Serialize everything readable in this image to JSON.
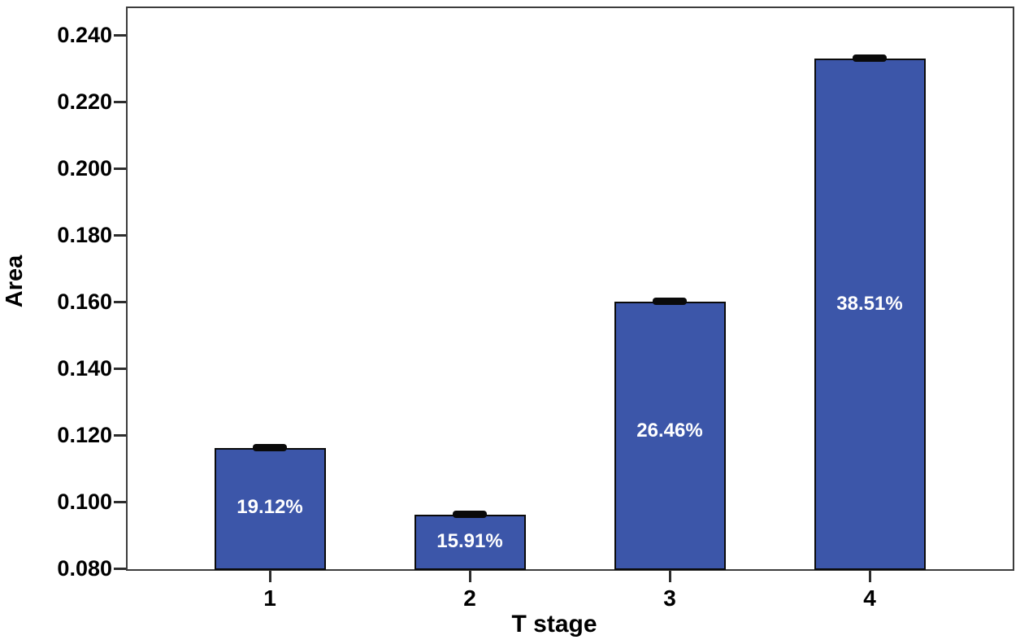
{
  "chart_data": {
    "type": "bar",
    "title": "",
    "xlabel": "T stage",
    "ylabel": "Area",
    "categories": [
      "1",
      "2",
      "3",
      "4"
    ],
    "values": [
      0.116,
      0.096,
      0.16,
      0.233
    ],
    "bar_labels": [
      "19.12%",
      "15.91%",
      "26.46%",
      "38.51%"
    ],
    "errors": [
      0.001,
      0.001,
      0.001,
      0.001
    ],
    "ylim": [
      0.08,
      0.24
    ],
    "ytick_step": 0.02,
    "yticks": [
      "0.080",
      "0.100",
      "0.120",
      "0.140",
      "0.160",
      "0.180",
      "0.200",
      "0.220",
      "0.240"
    ],
    "grid": false,
    "legend": "none",
    "bar_color": "#3c56a9",
    "bar_border_color": "#0a0a0a",
    "bar_label_color": "#ffffff",
    "axis_color": "#2d2d2d",
    "text_color": "#000000"
  }
}
